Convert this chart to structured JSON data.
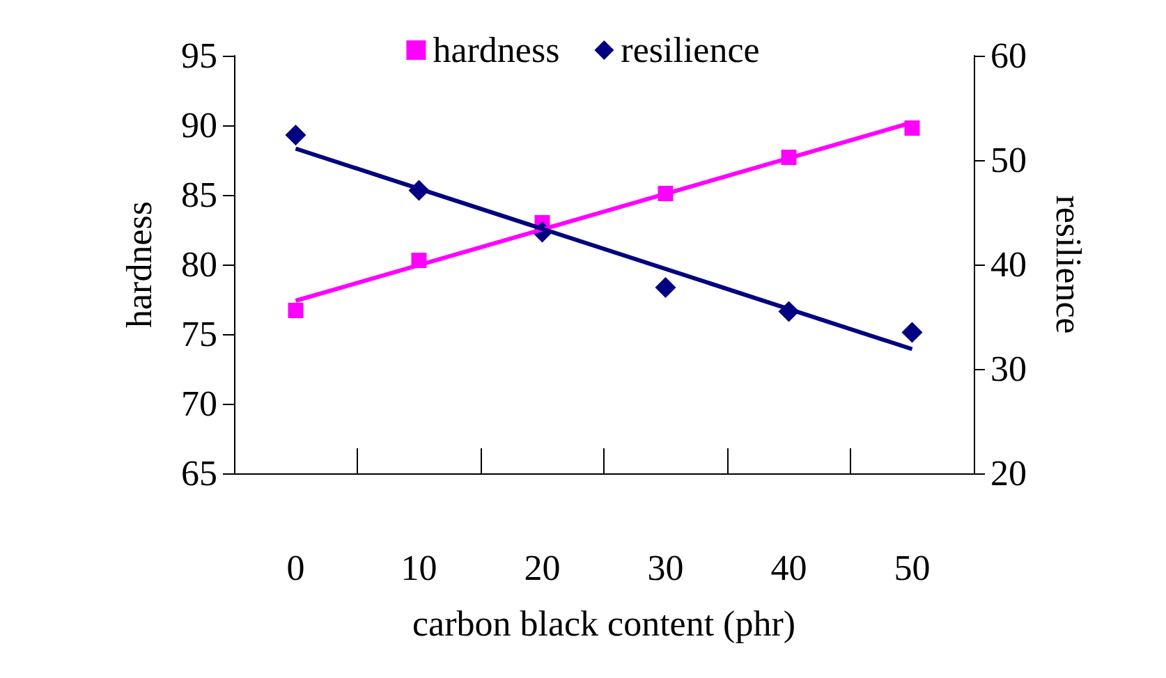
{
  "chart_data": {
    "type": "scatter",
    "categories": [
      "0",
      "10",
      "20",
      "30",
      "40",
      "50"
    ],
    "xlabel": "carbon black content (phr)",
    "ylabel": "hardness",
    "y2label": "resilience",
    "ylim": [
      65,
      95
    ],
    "yticks": [
      65,
      70,
      75,
      80,
      85,
      90,
      95
    ],
    "y2lim": [
      20,
      60
    ],
    "y2ticks": [
      20,
      30,
      40,
      50,
      60
    ],
    "grid": false,
    "legend": "top",
    "series": [
      {
        "name": "hardness",
        "marker": "square",
        "color": "#ff00ff",
        "values": [
          76.7,
          80.3,
          83.0,
          85.1,
          87.7,
          89.8
        ]
      },
      {
        "name": "resilience",
        "marker": "diamond",
        "axis": "y2",
        "color": "#000080",
        "values": [
          52.4,
          47.1,
          43.1,
          37.8,
          35.5,
          33.5
        ]
      },
      {
        "type": "line",
        "marker": "none",
        "color": "#ff00ff",
        "x": [
          "0",
          "50"
        ],
        "values": [
          77.4,
          90.2
        ]
      },
      {
        "type": "line",
        "marker": "none",
        "axis": "y2",
        "color": "#000080",
        "x": [
          "0",
          "50"
        ],
        "values": [
          51.1,
          31.9
        ]
      }
    ]
  }
}
